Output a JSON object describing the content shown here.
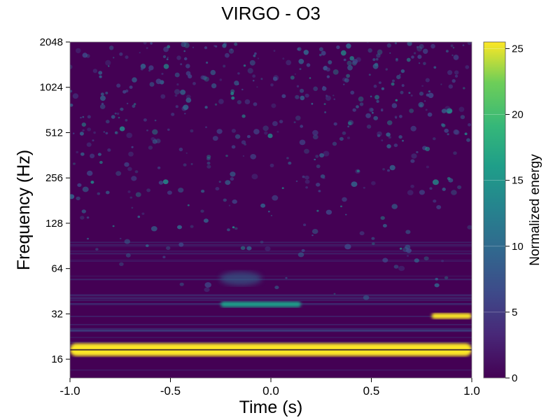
{
  "chart_data": {
    "type": "heatmap",
    "title": "VIRGO - O3",
    "xlabel": "Time (s)",
    "ylabel": "Frequency (Hz)",
    "xlim": [
      -1.0,
      1.0
    ],
    "ylim": [
      12,
      2048
    ],
    "y_scale": "log2",
    "x_ticks": [
      "-1.0",
      "-0.5",
      "0.0",
      "0.5",
      "1.0"
    ],
    "y_ticks": [
      "16",
      "32",
      "64",
      "128",
      "256",
      "512",
      "1024",
      "2048"
    ],
    "colorbar": {
      "label": "Normalized energy",
      "range": [
        0,
        25.5
      ],
      "ticks": [
        "0",
        "5",
        "10",
        "15",
        "20",
        "25"
      ],
      "colormap": "viridis"
    },
    "colors": {
      "low": "#440154",
      "mid": "#21918c",
      "high": "#fde725"
    },
    "features": [
      {
        "t_start": -1.0,
        "t_end": 1.0,
        "f_center": 18.5,
        "energy": 25
      },
      {
        "t_start": -0.25,
        "t_end": 0.15,
        "f_center": 37,
        "energy": 14
      },
      {
        "t_start": 0.8,
        "t_end": 1.0,
        "f_center": 31,
        "energy": 25
      }
    ]
  }
}
